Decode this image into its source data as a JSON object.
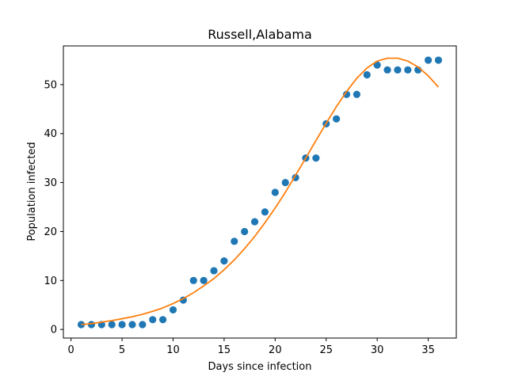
{
  "chart_data": {
    "type": "scatter",
    "title": "Russell,Alabama",
    "xlabel": "Days since infection",
    "ylabel": "Population infected",
    "xlim": [
      -0.75,
      37.75
    ],
    "ylim": [
      -1.75,
      57.9
    ],
    "xticks": [
      0,
      5,
      10,
      15,
      20,
      25,
      30,
      35
    ],
    "yticks": [
      0,
      10,
      20,
      30,
      40,
      50
    ],
    "grid": false,
    "legend": "none",
    "series": [
      {
        "kind": "scatter",
        "color": "#1f77b4",
        "x": [
          1,
          2,
          3,
          4,
          5,
          6,
          7,
          8,
          9,
          10,
          11,
          12,
          13,
          14,
          15,
          16,
          17,
          18,
          19,
          20,
          21,
          22,
          23,
          24,
          25,
          26,
          27,
          28,
          29,
          30,
          31,
          32,
          33,
          34,
          35,
          36
        ],
        "y": [
          1,
          1,
          1,
          1,
          1,
          1,
          1,
          2,
          2,
          4,
          6,
          10,
          10,
          12,
          14,
          18,
          20,
          22,
          24,
          28,
          30,
          31,
          35,
          35,
          42,
          43,
          48,
          48,
          52,
          54,
          53,
          53,
          53,
          53,
          55,
          55
        ]
      },
      {
        "kind": "line",
        "color": "#ff7f0e",
        "x": [
          1,
          2,
          3,
          4,
          5,
          6,
          7,
          8,
          9,
          10,
          11,
          12,
          13,
          14,
          15,
          16,
          17,
          18,
          19,
          20,
          21,
          22,
          23,
          24,
          25,
          26,
          27,
          28,
          29,
          30,
          31,
          32,
          33,
          34,
          35,
          36
        ],
        "y": [
          1.0,
          1.2,
          1.5,
          1.8,
          2.2,
          2.6,
          3.1,
          3.7,
          4.4,
          5.3,
          6.3,
          7.5,
          8.9,
          10.4,
          12.2,
          14.2,
          16.5,
          19.0,
          21.8,
          24.8,
          28.0,
          31.5,
          35.0,
          38.6,
          42.1,
          45.5,
          48.6,
          51.3,
          53.4,
          54.8,
          55.4,
          55.4,
          54.8,
          53.6,
          51.8,
          49.5
        ]
      }
    ]
  }
}
